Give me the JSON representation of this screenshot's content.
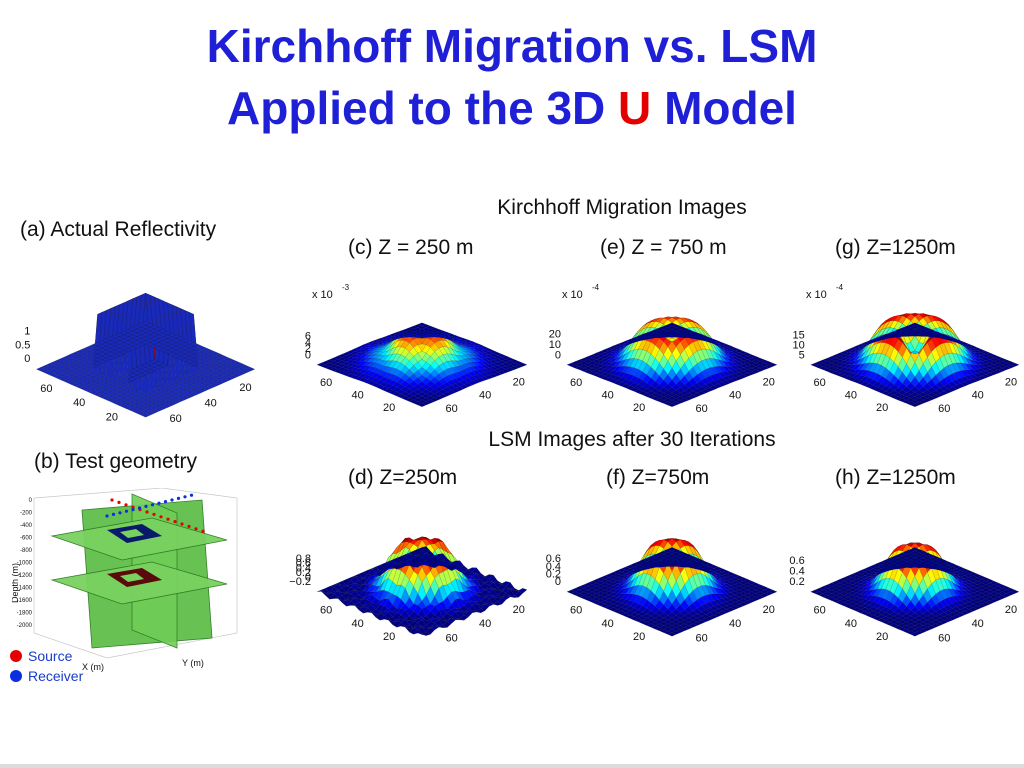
{
  "title": {
    "line1": "Kirchhoff Migration vs. LSM",
    "line2_pre": "Applied to the 3D",
    "line2_highlight": "U",
    "line2_post": "Model"
  },
  "captions": {
    "actual_reflectivity": "(a) Actual Reflectivity",
    "test_geometry": "(b) Test geometry",
    "km_heading": "Kirchhoff Migration Images",
    "lsm_heading": "LSM Images after 30 Iterations"
  },
  "panels": [
    {
      "id": "a",
      "label": "",
      "scale": "",
      "zticks": [
        "1",
        "0.5",
        "0"
      ],
      "xticks": [
        "60",
        "40",
        "20"
      ],
      "yticks": [
        "20",
        "40",
        "60"
      ]
    },
    {
      "id": "c",
      "label": "(c) Z = 250 m",
      "scale": "x 10",
      "exp": "-3",
      "zticks": [
        "6",
        "4",
        "2",
        "0"
      ],
      "xticks": [
        "60",
        "40",
        "20"
      ],
      "yticks": [
        "20",
        "40",
        "60"
      ]
    },
    {
      "id": "e",
      "label": "(e) Z = 750 m",
      "scale": "x 10",
      "exp": "-4",
      "zticks": [
        "20",
        "10",
        "0"
      ],
      "xticks": [
        "60",
        "40",
        "20"
      ],
      "yticks": [
        "20",
        "40",
        "60"
      ]
    },
    {
      "id": "g",
      "label": "(g) Z=1250m",
      "scale": "x 10",
      "exp": "-4",
      "zticks": [
        "15",
        "10",
        "5"
      ],
      "xticks": [
        "60",
        "40",
        "20"
      ],
      "yticks": [
        "20",
        "40",
        "60"
      ]
    },
    {
      "id": "d",
      "label": "(d) Z=250m",
      "scale": "",
      "zticks": [
        "0.8",
        "0.6",
        "0.4",
        "0.2",
        "0",
        "−0.2"
      ],
      "xticks": [
        "60",
        "40",
        "20"
      ],
      "yticks": [
        "20",
        "40",
        "60"
      ]
    },
    {
      "id": "f",
      "label": "(f) Z=750m",
      "scale": "",
      "zticks": [
        "0.6",
        "0.4",
        "0.2",
        "0"
      ],
      "xticks": [
        "60",
        "40",
        "20"
      ],
      "yticks": [
        "20",
        "40",
        "60"
      ]
    },
    {
      "id": "h",
      "label": "(h) Z=1250m",
      "scale": "",
      "zticks": [
        "0.6",
        "0.4",
        "0.2"
      ],
      "xticks": [
        "60",
        "40",
        "20"
      ],
      "yticks": [
        "20",
        "40",
        "60"
      ]
    }
  ],
  "geometry": {
    "ylabel": "Depth (m)",
    "xlabel": "X (m)",
    "xlabel2": "Y (m)",
    "depth_ticks": [
      "0",
      "-200",
      "-400",
      "-600",
      "-800",
      "-1000",
      "-1200",
      "-1400",
      "-1600",
      "-1800",
      "-2000"
    ]
  },
  "legend": {
    "source": "Source",
    "receiver": "Receiver",
    "source_color": "#e60000",
    "receiver_color": "#0a2ee0"
  }
}
